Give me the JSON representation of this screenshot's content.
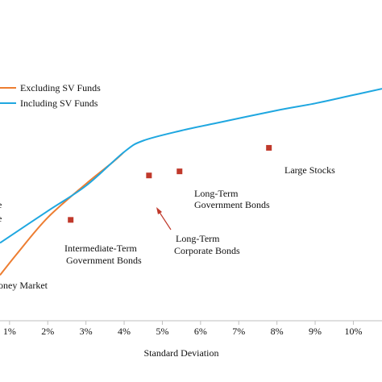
{
  "chart_data": {
    "type": "line",
    "xlabel": "Standard Deviation",
    "x_tick_labels": [
      "1%",
      "2%",
      "3%",
      "4%",
      "5%",
      "6%",
      "7%",
      "8%",
      "9%",
      "10%"
    ],
    "x_ticks": [
      1,
      2,
      3,
      4,
      5,
      6,
      7,
      8,
      9,
      10
    ],
    "xlim": [
      0.75,
      10.75
    ],
    "ylim": [
      0,
      1
    ],
    "series": [
      {
        "name": "Excluding SV Funds",
        "color": "#ed7d31",
        "points": [
          [
            0.75,
            0.19
          ],
          [
            1.2,
            0.28
          ],
          [
            2.0,
            0.43
          ],
          [
            3.0,
            0.57
          ],
          [
            3.7,
            0.66
          ],
          [
            4.0,
            0.703
          ]
        ]
      },
      {
        "name": "Including SV Funds",
        "color": "#1fa7e0",
        "points": [
          [
            0.75,
            0.324
          ],
          [
            2.0,
            0.457
          ],
          [
            3.0,
            0.562
          ],
          [
            4.0,
            0.703
          ],
          [
            4.5,
            0.75
          ],
          [
            5.5,
            0.792
          ],
          [
            6.5,
            0.826
          ],
          [
            8.0,
            0.876
          ],
          [
            9.0,
            0.905
          ],
          [
            10.0,
            0.94
          ],
          [
            10.75,
            0.966
          ]
        ]
      }
    ],
    "markers": [
      {
        "label": "Large Stocks",
        "x": 7.79,
        "y": 0.72
      },
      {
        "label": "Long-Term Government Bonds",
        "x": 5.45,
        "y": 0.622
      },
      {
        "label": "Long-Term Corporate Bonds",
        "x": 4.65,
        "y": 0.605
      },
      {
        "label": "Intermediate-Term Government Bonds",
        "x": 2.6,
        "y": 0.42
      }
    ],
    "annotations": {
      "lt_gov_line1": "Long-Term",
      "lt_gov_line2": "Government Bonds",
      "lt_corp_line1": "Long-Term",
      "lt_corp_line2": "Corporate Bonds",
      "int_gov_line1": "Intermediate-Term",
      "int_gov_line2": "Government Bonds",
      "large_stocks": "Large Stocks",
      "money_market": "oney Market",
      "left_fragment_1": "e",
      "left_fragment_2": "e"
    },
    "marker_color": "#c0392b",
    "legend": {
      "placement": "top-left",
      "items": [
        "Excluding SV Funds",
        "Including SV Funds"
      ]
    }
  }
}
